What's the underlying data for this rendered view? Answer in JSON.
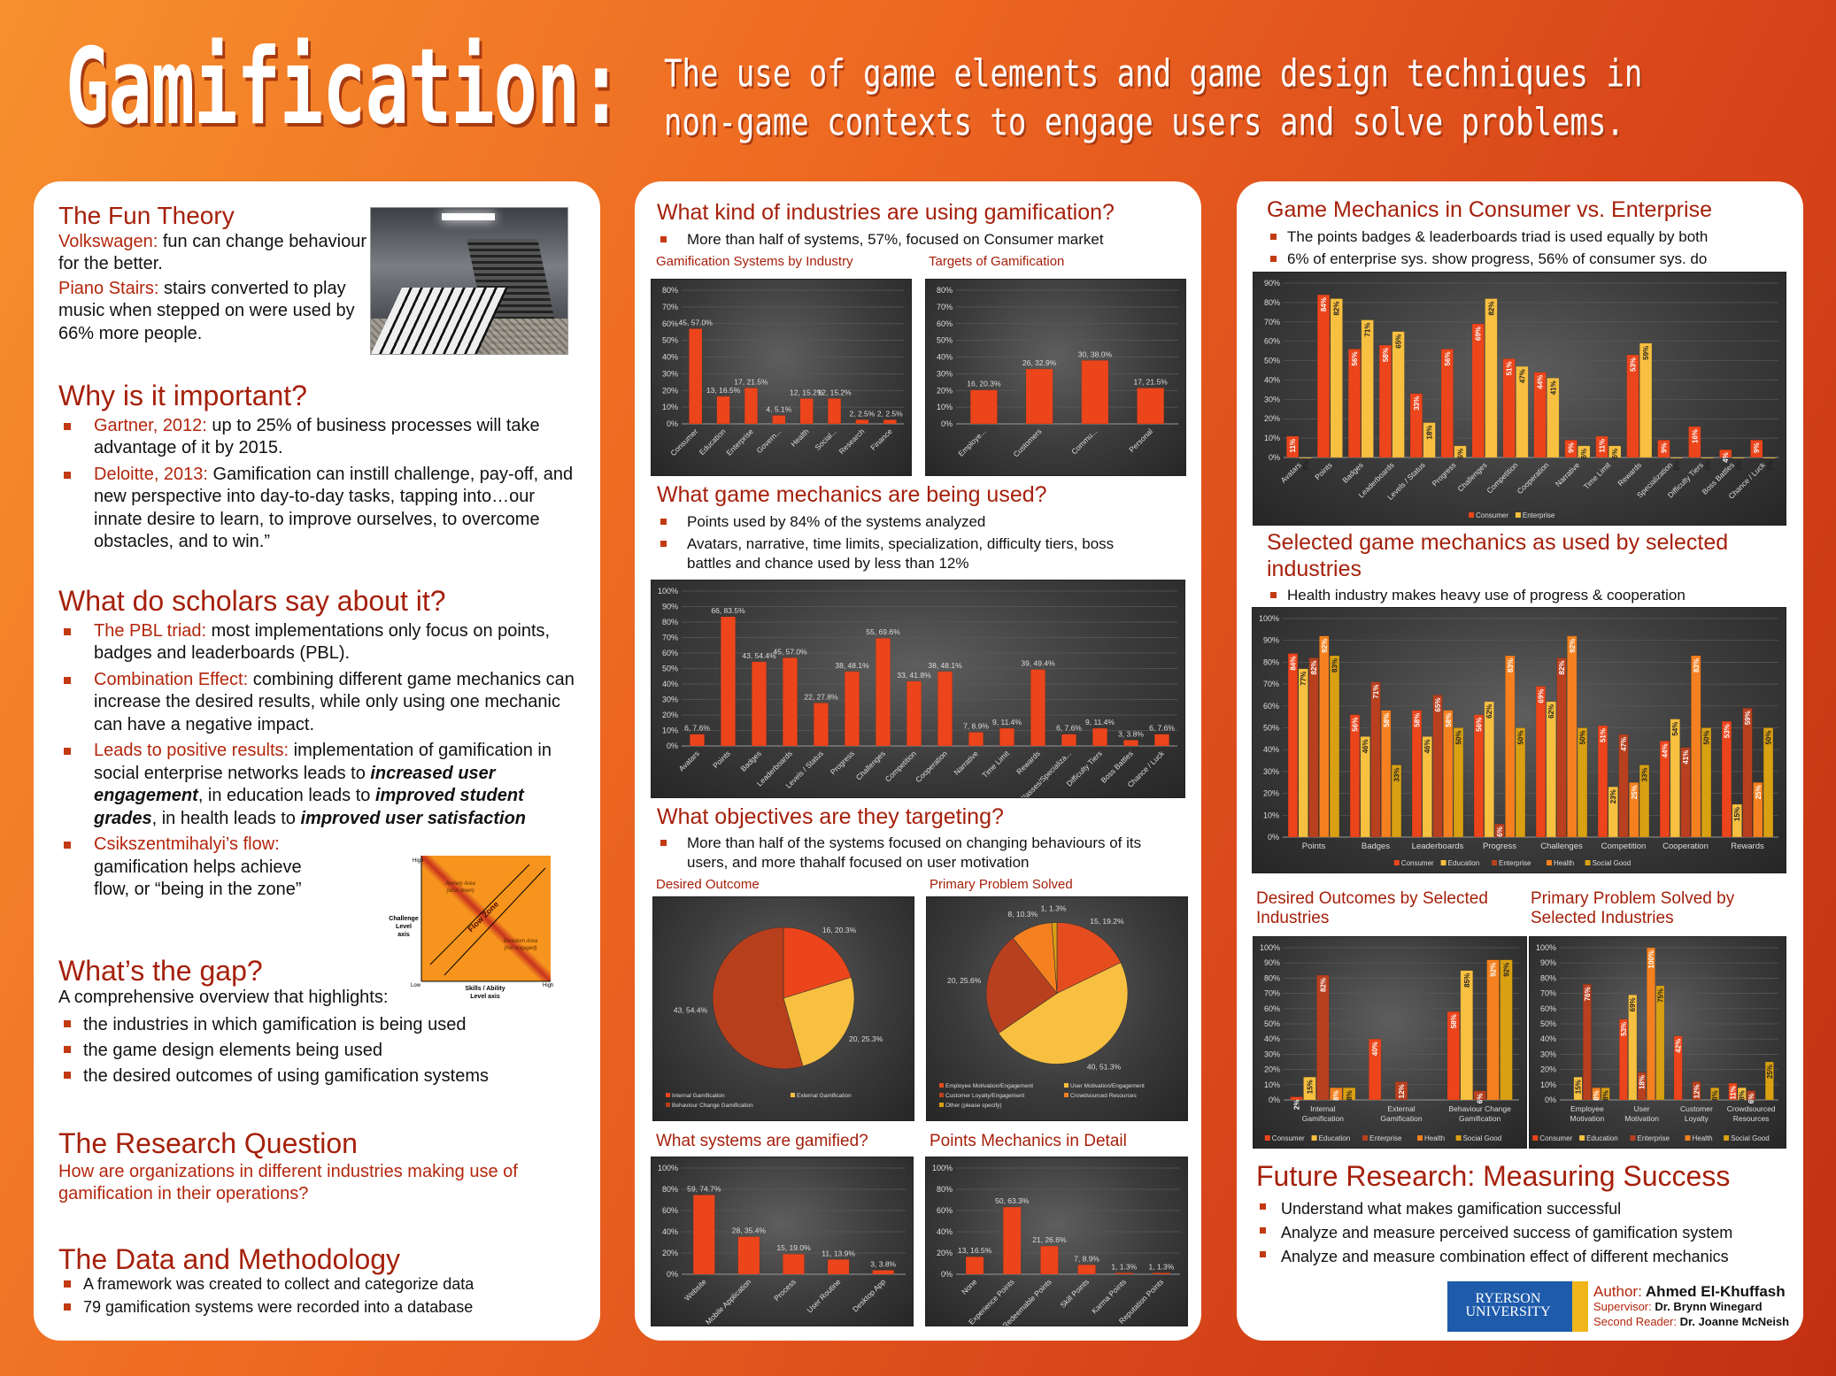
{
  "header": {
    "title": "Gamification:",
    "subtitle_line1": "The use of game elements and game design techniques in",
    "subtitle_line2": "non-game contexts to engage users and solve problems."
  },
  "left": {
    "fun_theory": {
      "title": "The Fun Theory",
      "p1_label": "Volkswagen:",
      "p1_text": " fun can change behaviour for the better.",
      "p2_label": "Piano Stairs:",
      "p2_text": " stairs converted to play music when stepped on were used by 66% more people."
    },
    "why": {
      "title": "Why is it important?",
      "items": [
        {
          "label": "Gartner, 2012:",
          "text": " up to 25% of business processes will take advantage of it by 2015."
        },
        {
          "label": "Deloitte, 2013:",
          "text": " Gamification can instill challenge, pay-off, and new perspective into day-to-day tasks, tapping into…our innate desire to learn, to improve ourselves, to overcome obstacles, and to win.”"
        }
      ]
    },
    "scholars": {
      "title": "What do scholars say about it?",
      "items": [
        {
          "label": "The PBL triad:",
          "text": " most implementations only focus on points, badges and leaderboards (PBL)."
        },
        {
          "label": "Combination Effect:",
          "text": " combining different game mechanics can increase the desired results, while only using one mechanic can have a negative impact."
        },
        {
          "label": "Leads to positive results:",
          "t1": " implementation of gamification in social enterprise networks leads to ",
          "e1": "increased user engagement",
          "t2": ", in education leads to ",
          "e2": "improved student grades",
          "t3": ", in health leads to ",
          "e3": "improved user satisfaction"
        },
        {
          "label": "Csikszentmihalyi’s flow:",
          "text": " gamification helps achieve flow, or “being in the zone”"
        }
      ]
    },
    "flow_diagram": {
      "high_y": "High",
      "low": "Low",
      "high_x": "High",
      "y_axis_1": "Challenge",
      "y_axis_2": "Level",
      "y_axis_3": "axis",
      "x_axis_1": "Skills / Ability",
      "x_axis_2": "Level axis",
      "anxiety_1": "Anxiety Area",
      "anxiety_2": "(shut down)",
      "boredom_1": "Boredom Area",
      "boredom_2": "(not engaged)",
      "flow": "Flow Zone"
    },
    "gap": {
      "title": "What’s the gap?",
      "intro": "A comprehensive overview that highlights:",
      "items": [
        "the industries in which gamification is being used",
        "the game design elements being used",
        "the desired outcomes of using gamification systems"
      ]
    },
    "research_question": {
      "title": "The Research Question",
      "text": "How are organizations in different industries making use of gamification in their operations?"
    },
    "data_method": {
      "title": "The Data and Methodology",
      "items": [
        "A framework was created to collect and categorize data",
        "79 gamification systems were recorded into a database"
      ]
    }
  },
  "middle": {
    "industries": {
      "title": "What kind of industries are using gamification?",
      "bullet": "More than half of systems, 57%, focused on Consumer market"
    },
    "mechanics": {
      "title": "What game mechanics are being used?",
      "bullets": [
        "Points used by 84% of the systems analyzed",
        "Avatars, narrative, time limits, specialization, difficulty tiers, boss battles and chance used by less than 12%"
      ]
    },
    "objectives": {
      "title": "What objectives are they targeting?",
      "bullet": "More than half of the systems focused on changing behaviours of its users, and more thahalf focused on user motivation"
    }
  },
  "right": {
    "consumer_enterprise": {
      "title": "Game Mechanics in Consumer vs. Enterprise",
      "bullets": [
        "The points badges & leaderboards triad is used equally by both",
        "6% of enterprise sys. show progress, 56% of consumer sys. do"
      ]
    },
    "selected": {
      "title_1": "Selected game mechanics as used by selected",
      "title_2": "industries",
      "bullet": "Health industry makes heavy use of progress & cooperation"
    },
    "future": {
      "title": "Future Research: Measuring Success",
      "items": [
        "Understand what makes gamification successful",
        "Analyze and measure perceived success of gamification system",
        "Analyze and measure combination effect of different mechanics"
      ]
    },
    "logo_1": "RYERSON",
    "logo_2": "UNIVERSITY",
    "author_label": "Author:",
    "author": " Ahmed El-Khuffash",
    "supervisor_label": "Supervisor:",
    "supervisor": " Dr. Brynn Winegard",
    "reader_label": "Second Reader:",
    "reader": " Dr. Joanne McNeish"
  },
  "colors": {
    "consumer": "#ec451b",
    "education": "#f8c544",
    "enterprise": "#b8401f",
    "health": "#f5801f",
    "social_good": "#d9a012",
    "heading": "#a5200b"
  },
  "chart_data": [
    {
      "type": "bar",
      "title": "Gamification Systems by Industry",
      "categories": [
        "Consumer",
        "Education",
        "Enterprise",
        "Govern...",
        "Health",
        "Social...",
        "Research",
        "Finance"
      ],
      "series": [
        {
          "name": "Systems",
          "counts": [
            45,
            13,
            17,
            4,
            12,
            12,
            2,
            2
          ],
          "values": [
            57.0,
            16.5,
            21.5,
            5.1,
            15.2,
            15.2,
            2.5,
            2.5
          ],
          "color": "#ec451b"
        }
      ],
      "ylim": [
        0,
        80
      ],
      "ystep": 10,
      "label": "count",
      "rotate": true,
      "legend": false
    },
    {
      "type": "bar",
      "title": "Targets of Gamification",
      "categories": [
        "Employe...",
        "Customers",
        "Commu...",
        "Personal"
      ],
      "series": [
        {
          "name": "Systems",
          "counts": [
            16,
            26,
            30,
            17
          ],
          "values": [
            20.3,
            32.9,
            38.0,
            21.5
          ],
          "color": "#ec451b"
        }
      ],
      "ylim": [
        0,
        80
      ],
      "ystep": 10,
      "label": "count",
      "rotate": true,
      "legend": false
    },
    {
      "type": "bar",
      "title": "",
      "categories": [
        "Avatars",
        "Points",
        "Badges",
        "Leaderboards",
        "Levels / Status",
        "Progress",
        "Challenges",
        "Competition",
        "Cooperation",
        "Narrative",
        "Time Limit",
        "Rewards",
        "Classes/Specializa...",
        "Difficulty Tiers",
        "Boss Battles",
        "Chance / Luck"
      ],
      "series": [
        {
          "name": "Systems",
          "counts": [
            6,
            66,
            43,
            45,
            22,
            38,
            55,
            33,
            38,
            7,
            9,
            39,
            6,
            9,
            3,
            6
          ],
          "values": [
            7.6,
            83.5,
            54.4,
            57.0,
            27.8,
            48.1,
            69.6,
            41.8,
            48.1,
            8.9,
            11.4,
            49.4,
            7.6,
            11.4,
            3.8,
            7.6
          ],
          "color": "#ec451b"
        }
      ],
      "ylim": [
        0,
        100
      ],
      "ystep": 10,
      "label": "count",
      "rotate": true,
      "legend": false
    },
    {
      "type": "pie",
      "title": "Desired Outcome",
      "categories": [
        "Internal Gamification",
        "External Gamification",
        "Behaviour Change Gamification"
      ],
      "counts": [
        16,
        20,
        43
      ],
      "values": [
        20.3,
        25.3,
        54.4
      ],
      "colors": [
        "#ec451b",
        "#f8c040",
        "#b83f1c"
      ]
    },
    {
      "type": "pie",
      "title": "Primary Problem Solved",
      "categories": [
        "Employee Motivation/Engagement",
        "User Motivation/Engagement",
        "Customer Loyalty/Engagement",
        "Crowdsourced Resources",
        "Other (please specify)"
      ],
      "counts": [
        15,
        40,
        20,
        8,
        1
      ],
      "values": [
        19.2,
        51.3,
        25.6,
        10.3,
        1.3
      ],
      "colors": [
        "#e54d1f",
        "#f8c040",
        "#b8401f",
        "#f5801f",
        "#d9a012"
      ]
    },
    {
      "type": "bar",
      "title": "What systems are gamified?",
      "categories": [
        "Website",
        "Mobile Application",
        "Process",
        "User Routine",
        "Desktop App"
      ],
      "series": [
        {
          "name": "Systems",
          "counts": [
            59,
            28,
            15,
            11,
            3
          ],
          "values": [
            74.7,
            35.4,
            19.0,
            13.9,
            3.8
          ],
          "color": "#ec451b"
        }
      ],
      "ylim": [
        0,
        100
      ],
      "ystep": 20,
      "label": "count",
      "rotate": true,
      "legend": false
    },
    {
      "type": "bar",
      "title": "Points Mechanics in Detail",
      "categories": [
        "None",
        "Experience Points",
        "Redeemable Points",
        "Skill Points",
        "Karma Points",
        "Reputation Points"
      ],
      "series": [
        {
          "name": "Systems",
          "counts": [
            13,
            50,
            21,
            7,
            1,
            1
          ],
          "values": [
            16.5,
            63.3,
            26.6,
            8.9,
            1.3,
            1.3
          ],
          "color": "#ec451b"
        }
      ],
      "ylim": [
        0,
        100
      ],
      "ystep": 20,
      "label": "count",
      "rotate": true,
      "legend": false
    },
    {
      "type": "bar",
      "title": "",
      "categories": [
        "Avatars",
        "Points",
        "Badges",
        "Leaderboards",
        "Levels / Status",
        "Progress",
        "Challenges",
        "Competition",
        "Cooperation",
        "Narrative",
        "Time Limit",
        "Rewards",
        "Specialization",
        "Difficulty Tiers",
        "Boss Battles",
        "Chance / Luck"
      ],
      "series": [
        {
          "name": "Consumer",
          "values": [
            11,
            84,
            56,
            58,
            33,
            56,
            69,
            51,
            44,
            9,
            11,
            53,
            9,
            16,
            4,
            9
          ],
          "color": "#ec451b"
        },
        {
          "name": "Enterprise",
          "values": [
            0,
            82,
            71,
            65,
            18,
            6,
            82,
            47,
            41,
            6,
            6,
            59,
            0,
            0,
            0,
            0
          ],
          "color": "#f8c040"
        }
      ],
      "ylim": [
        0,
        90
      ],
      "ystep": 10,
      "label": "pct",
      "rotate": true,
      "legend": true
    },
    {
      "type": "bar",
      "title": "",
      "categories": [
        "Points",
        "Badges",
        "Leaderboards",
        "Progress",
        "Challenges",
        "Competition",
        "Cooperation",
        "Rewards"
      ],
      "series": [
        {
          "name": "Consumer",
          "values": [
            84,
            56,
            58,
            56,
            69,
            51,
            44,
            53
          ],
          "color": "#ec451b"
        },
        {
          "name": "Education",
          "values": [
            77,
            46,
            46,
            62,
            62,
            23,
            54,
            15
          ],
          "color": "#f8c040"
        },
        {
          "name": "Enterprise",
          "values": [
            82,
            71,
            65,
            6,
            82,
            47,
            41,
            59
          ],
          "color": "#b8401f"
        },
        {
          "name": "Health",
          "values": [
            92,
            58,
            58,
            83,
            92,
            25,
            83,
            25
          ],
          "color": "#f5801f"
        },
        {
          "name": "Social Good",
          "values": [
            83,
            33,
            50,
            50,
            50,
            33,
            50,
            50
          ],
          "color": "#d9a012"
        }
      ],
      "ylim": [
        0,
        100
      ],
      "ystep": 10,
      "label": "pct",
      "rotate": false,
      "legend": true
    },
    {
      "type": "bar",
      "title": "Desired Outcomes by Selected Industries",
      "categories": [
        "Internal\nGamification",
        "External\nGamification",
        "Behaviour Change\nGamification"
      ],
      "series": [
        {
          "name": "Consumer",
          "values": [
            2,
            40,
            58
          ],
          "color": "#ec451b"
        },
        {
          "name": "Education",
          "values": [
            15,
            null,
            85
          ],
          "color": "#f8c040"
        },
        {
          "name": "Enterprise",
          "values": [
            82,
            12,
            6
          ],
          "color": "#b8401f"
        },
        {
          "name": "Health",
          "values": [
            8,
            null,
            92
          ],
          "color": "#f5801f"
        },
        {
          "name": "Social Good",
          "values": [
            8,
            null,
            92
          ],
          "color": "#d9a012"
        }
      ],
      "ylim": [
        0,
        100
      ],
      "ystep": 10,
      "label": "pct",
      "rotate": false,
      "legend": true
    },
    {
      "type": "bar",
      "title": "Primary Problem Solved by Selected Industries",
      "categories": [
        "Employee\nMotivation",
        "User\nMotivation",
        "Customer\nLoyalty",
        "Crowdsourced\nResources"
      ],
      "series": [
        {
          "name": "Consumer",
          "values": [
            null,
            53,
            42,
            11
          ],
          "color": "#ec451b"
        },
        {
          "name": "Education",
          "values": [
            15,
            69,
            null,
            8
          ],
          "color": "#f8c040"
        },
        {
          "name": "Enterprise",
          "values": [
            76,
            18,
            12,
            6
          ],
          "color": "#b8401f"
        },
        {
          "name": "Health",
          "values": [
            8,
            100,
            null,
            null
          ],
          "color": "#f5801f"
        },
        {
          "name": "Social Good",
          "values": [
            8,
            75,
            8,
            25
          ],
          "color": "#d9a012"
        }
      ],
      "ylim": [
        0,
        100
      ],
      "ystep": 10,
      "label": "pct",
      "rotate": false,
      "legend": true
    }
  ]
}
